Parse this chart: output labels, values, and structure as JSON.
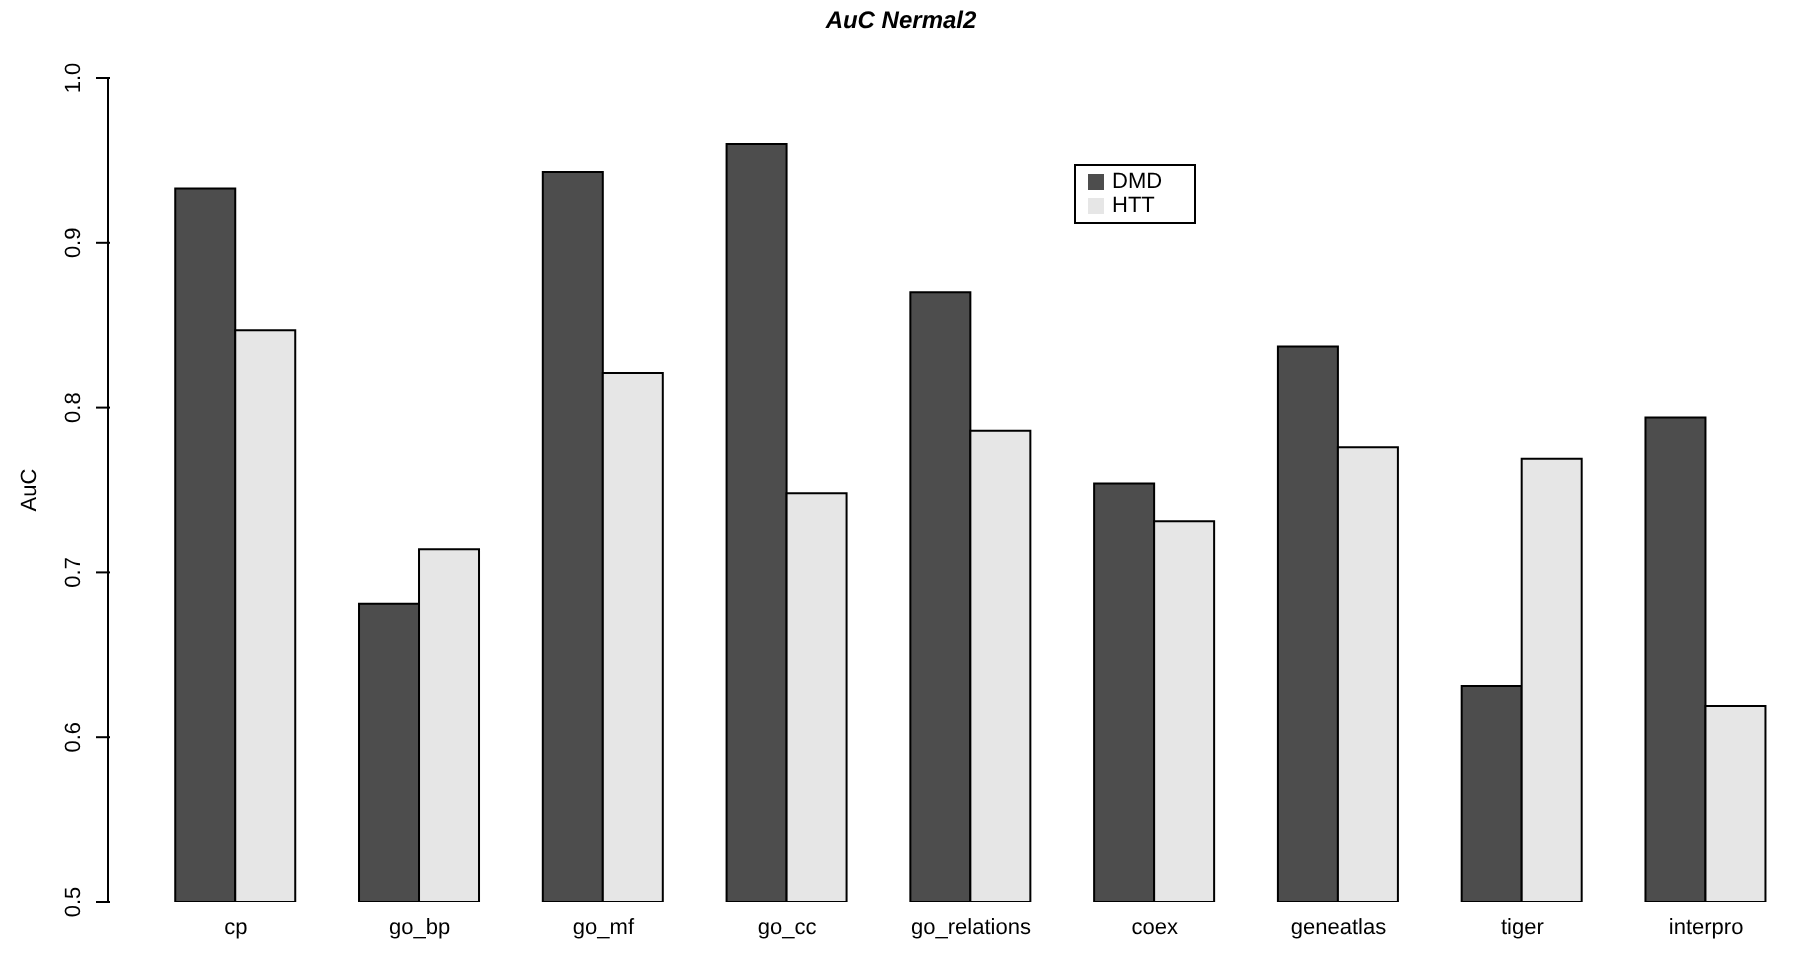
{
  "chart_data": {
    "type": "bar",
    "title": "AuC Nermal2",
    "ylabel": "AuC",
    "categories": [
      "cp",
      "go_bp",
      "go_mf",
      "go_cc",
      "go_relations",
      "coex",
      "geneatlas",
      "tiger",
      "interpro"
    ],
    "series": [
      {
        "name": "DMD",
        "color": "#4d4d4d",
        "values": [
          0.933,
          0.681,
          0.943,
          0.96,
          0.87,
          0.754,
          0.837,
          0.631,
          0.794
        ]
      },
      {
        "name": "HTT",
        "color": "#e6e6e6",
        "values": [
          0.847,
          0.714,
          0.821,
          0.748,
          0.786,
          0.731,
          0.776,
          0.769,
          0.619
        ]
      }
    ],
    "ylim": [
      0.5,
      1
    ],
    "yticks": [
      0.5,
      0.6,
      0.7,
      0.8,
      0.9,
      {
        "value": 1,
        "label": "1.0"
      }
    ],
    "grid": false,
    "legend": "top"
  }
}
